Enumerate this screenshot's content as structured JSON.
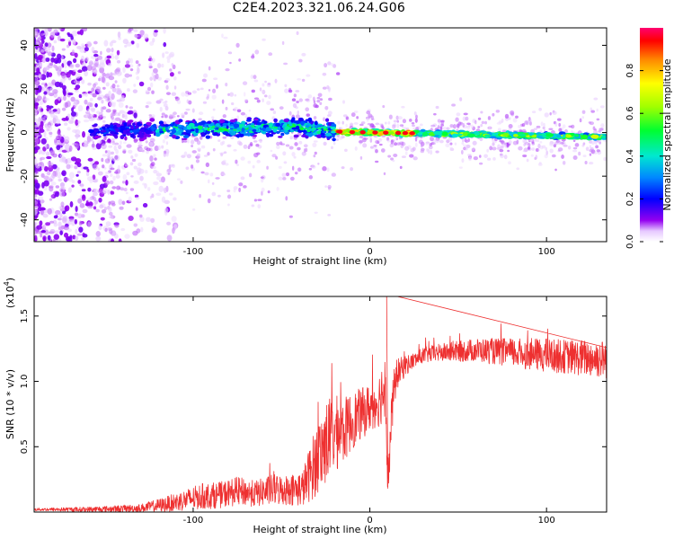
{
  "title": "C2E4.2023.321.06.24.G06",
  "colors": {
    "snr_line": "#ee3030",
    "axis": "#000000",
    "background": "#ffffff"
  },
  "chart_data": [
    {
      "type": "heatmap",
      "xlabel": "Height of straight line (km)",
      "ylabel": "Frequency (Hz)",
      "xlim": [
        -190,
        134
      ],
      "ylim": [
        -50,
        48
      ],
      "xticks": [
        -100,
        0,
        100
      ],
      "yticks": [
        -40,
        -20,
        0,
        20,
        40
      ],
      "colorbar": {
        "label": "Normalized spectral amplitude",
        "range": [
          0,
          1
        ],
        "ticks": [
          "0.0",
          "0.2",
          "0.4",
          "0.6",
          "0.8"
        ]
      },
      "annotation": "Wide scattered noise below about -120 km; narrow band centred near 0 Hz (slightly positive at -40 km) that sharpens after -20 km, drifting to about -2 Hz by 134 km; strongest amplitudes near -20 to 20 km"
    },
    {
      "type": "line",
      "xlabel": "Height of straight line (km)",
      "ylabel": "SNR (10 * v/v)",
      "y_multiplier": "(x10^4)",
      "y_multiplier_base": "(x10",
      "y_multiplier_exp": "4",
      "y_multiplier_close": ")",
      "xlim": [
        -190,
        134
      ],
      "ylim": [
        0,
        1.65
      ],
      "xticks": [
        -100,
        0,
        100
      ],
      "yticks": [
        0.5,
        1.0,
        1.5
      ],
      "ytick_labels": [
        "0.5",
        "1.0",
        "1.5"
      ],
      "series": [
        {
          "name": "SNR",
          "x": [
            -190,
            -160,
            -130,
            -115,
            -105,
            -95,
            -85,
            -75,
            -65,
            -55,
            -45,
            -38,
            -32,
            -28,
            -24,
            -20,
            -15,
            -10,
            -5,
            0,
            5,
            9,
            10,
            11,
            13,
            15,
            20,
            25,
            30,
            40,
            50,
            60,
            70,
            80,
            90,
            100,
            110,
            120,
            134
          ],
          "y": [
            0.02,
            0.02,
            0.03,
            0.06,
            0.09,
            0.12,
            0.13,
            0.16,
            0.14,
            0.17,
            0.17,
            0.18,
            0.35,
            0.45,
            0.55,
            0.6,
            0.62,
            0.7,
            0.75,
            0.8,
            0.85,
            1.0,
            0.25,
            0.4,
            0.85,
            1.05,
            1.12,
            1.16,
            1.2,
            1.22,
            1.23,
            1.24,
            1.23,
            1.22,
            1.21,
            1.2,
            1.19,
            1.18,
            1.17
          ],
          "noise": [
            0.01,
            0.02,
            0.03,
            0.06,
            0.08,
            0.1,
            0.1,
            0.11,
            0.1,
            0.12,
            0.12,
            0.14,
            0.25,
            0.3,
            0.32,
            0.3,
            0.25,
            0.22,
            0.2,
            0.18,
            0.2,
            0.3,
            0.1,
            0.2,
            0.2,
            0.12,
            0.08,
            0.06,
            0.06,
            0.07,
            0.08,
            0.09,
            0.1,
            0.11,
            0.12,
            0.13,
            0.13,
            0.14,
            0.15
          ]
        }
      ]
    }
  ]
}
